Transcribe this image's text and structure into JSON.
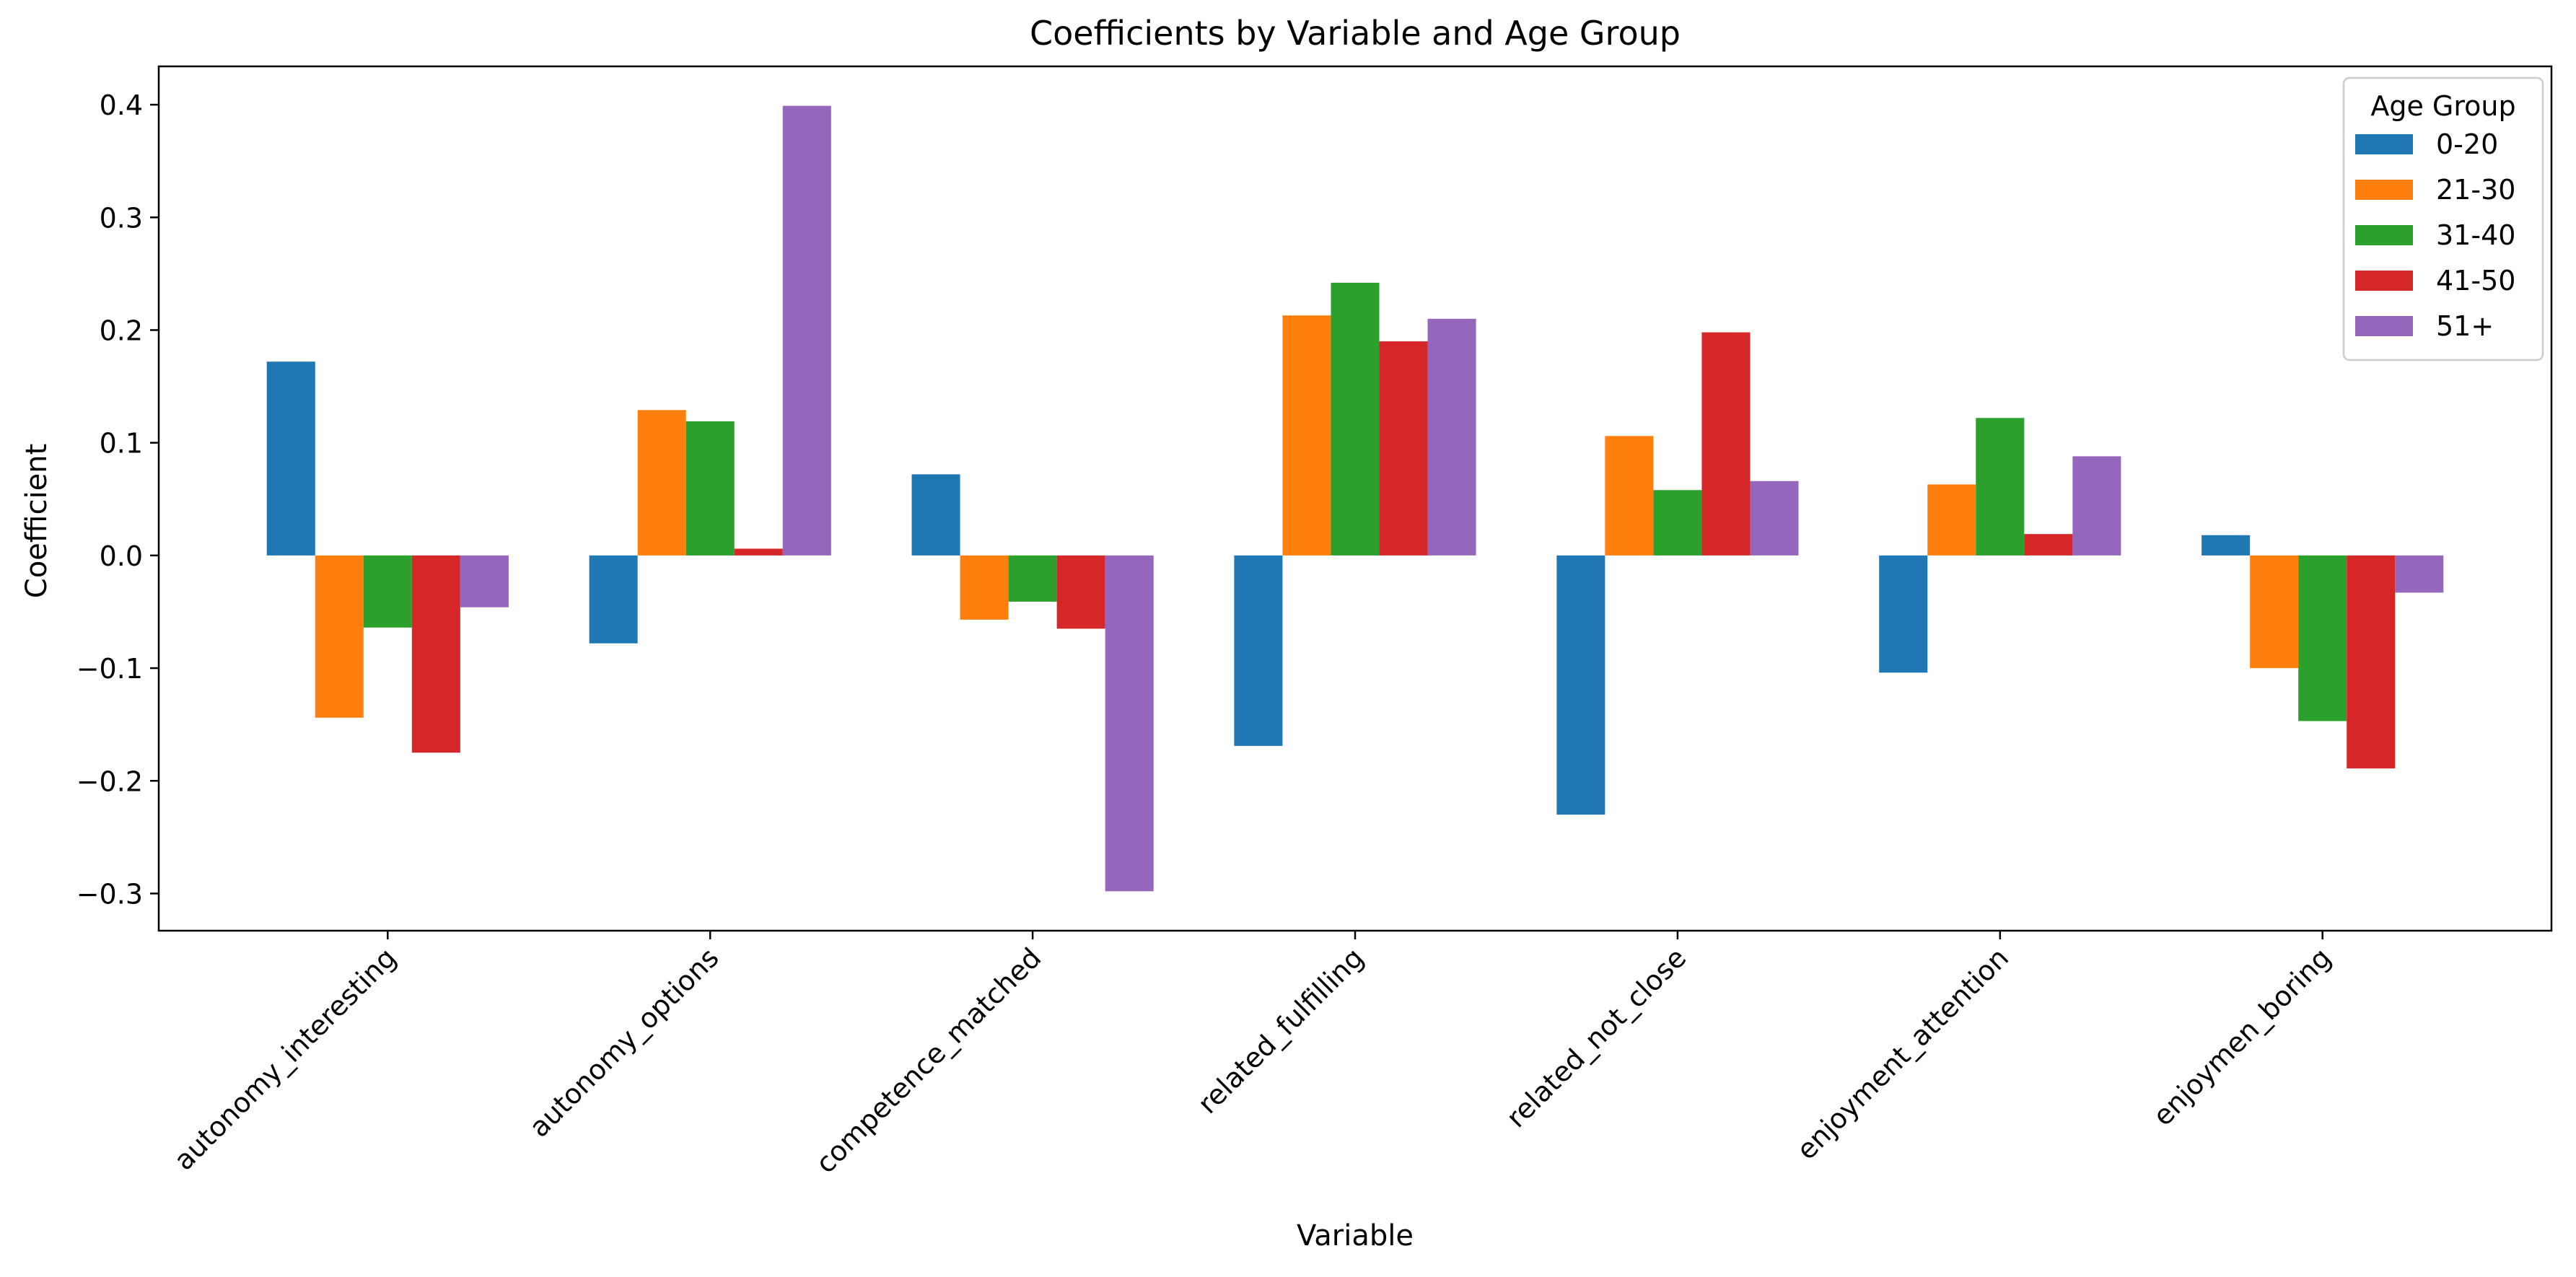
{
  "chart_data": {
    "type": "bar",
    "title": "Coefficients by Variable and Age Group",
    "xlabel": "Variable",
    "ylabel": "Coefficient",
    "ylim": [
      -0.333,
      0.434
    ],
    "yticks": [
      -0.3,
      -0.2,
      -0.1,
      0.0,
      0.1,
      0.2,
      0.3,
      0.4
    ],
    "ytick_labels": [
      "−0.3",
      "−0.2",
      "−0.1",
      "0.0",
      "0.1",
      "0.2",
      "0.3",
      "0.4"
    ],
    "grid": false,
    "legend": {
      "title": "Age Group",
      "placement": "top-right"
    },
    "categories": [
      "autonomy_interesting",
      "autonomy_options",
      "competence_matched",
      "related_fulfilling",
      "related_not_close",
      "enjoyment_attention",
      "enjoymen_boring"
    ],
    "series": [
      {
        "name": "0-20",
        "color": "#1f77b4",
        "values": [
          0.172,
          -0.078,
          0.072,
          -0.169,
          -0.23,
          -0.104,
          0.018
        ]
      },
      {
        "name": "21-30",
        "color": "#ff7f0e",
        "values": [
          -0.144,
          0.129,
          -0.057,
          0.213,
          0.106,
          0.063,
          -0.1
        ]
      },
      {
        "name": "31-40",
        "color": "#2ca02c",
        "values": [
          -0.064,
          0.119,
          -0.041,
          0.242,
          0.058,
          0.122,
          -0.147
        ]
      },
      {
        "name": "41-50",
        "color": "#d62728",
        "values": [
          -0.175,
          0.006,
          -0.065,
          0.19,
          0.198,
          0.019,
          -0.189
        ]
      },
      {
        "name": "51+",
        "color": "#9467bd",
        "values": [
          -0.046,
          0.399,
          -0.298,
          0.21,
          0.066,
          0.088,
          -0.033
        ]
      }
    ]
  }
}
